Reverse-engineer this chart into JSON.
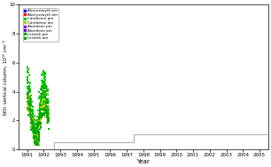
{
  "title": "",
  "xlabel": "Year",
  "ylabel": "NO₂ vertical column, 10¹⁵ cm⁻²",
  "xlim": [
    1990.5,
    2005.5
  ],
  "ylim": [
    0,
    10
  ],
  "yticks": [
    0,
    2,
    4,
    6,
    8,
    10
  ],
  "xticks": [
    1991,
    1992,
    1993,
    1994,
    1995,
    1996,
    1997,
    1998,
    1999,
    2000,
    2001,
    2002,
    2003,
    2004,
    2005
  ],
  "legend_entries": [
    "Aberystwyth pm",
    "Aberystwyth am",
    "Camborne pm",
    "Camborne am",
    "Aberdeen pm",
    "Aberdeen am",
    "Lerwick pm",
    "Lerwick am"
  ],
  "legend_colors": [
    "#0000ff",
    "#ff0000",
    "#00cc00",
    "#99cc00",
    "#8800ff",
    "#8800ff",
    "#00bb00",
    "#00bb00"
  ],
  "step_line_color": "#aaaaaa",
  "background_color": "#ffffff",
  "figsize": [
    3.06,
    1.89
  ],
  "dpi": 100,
  "seed": 42
}
